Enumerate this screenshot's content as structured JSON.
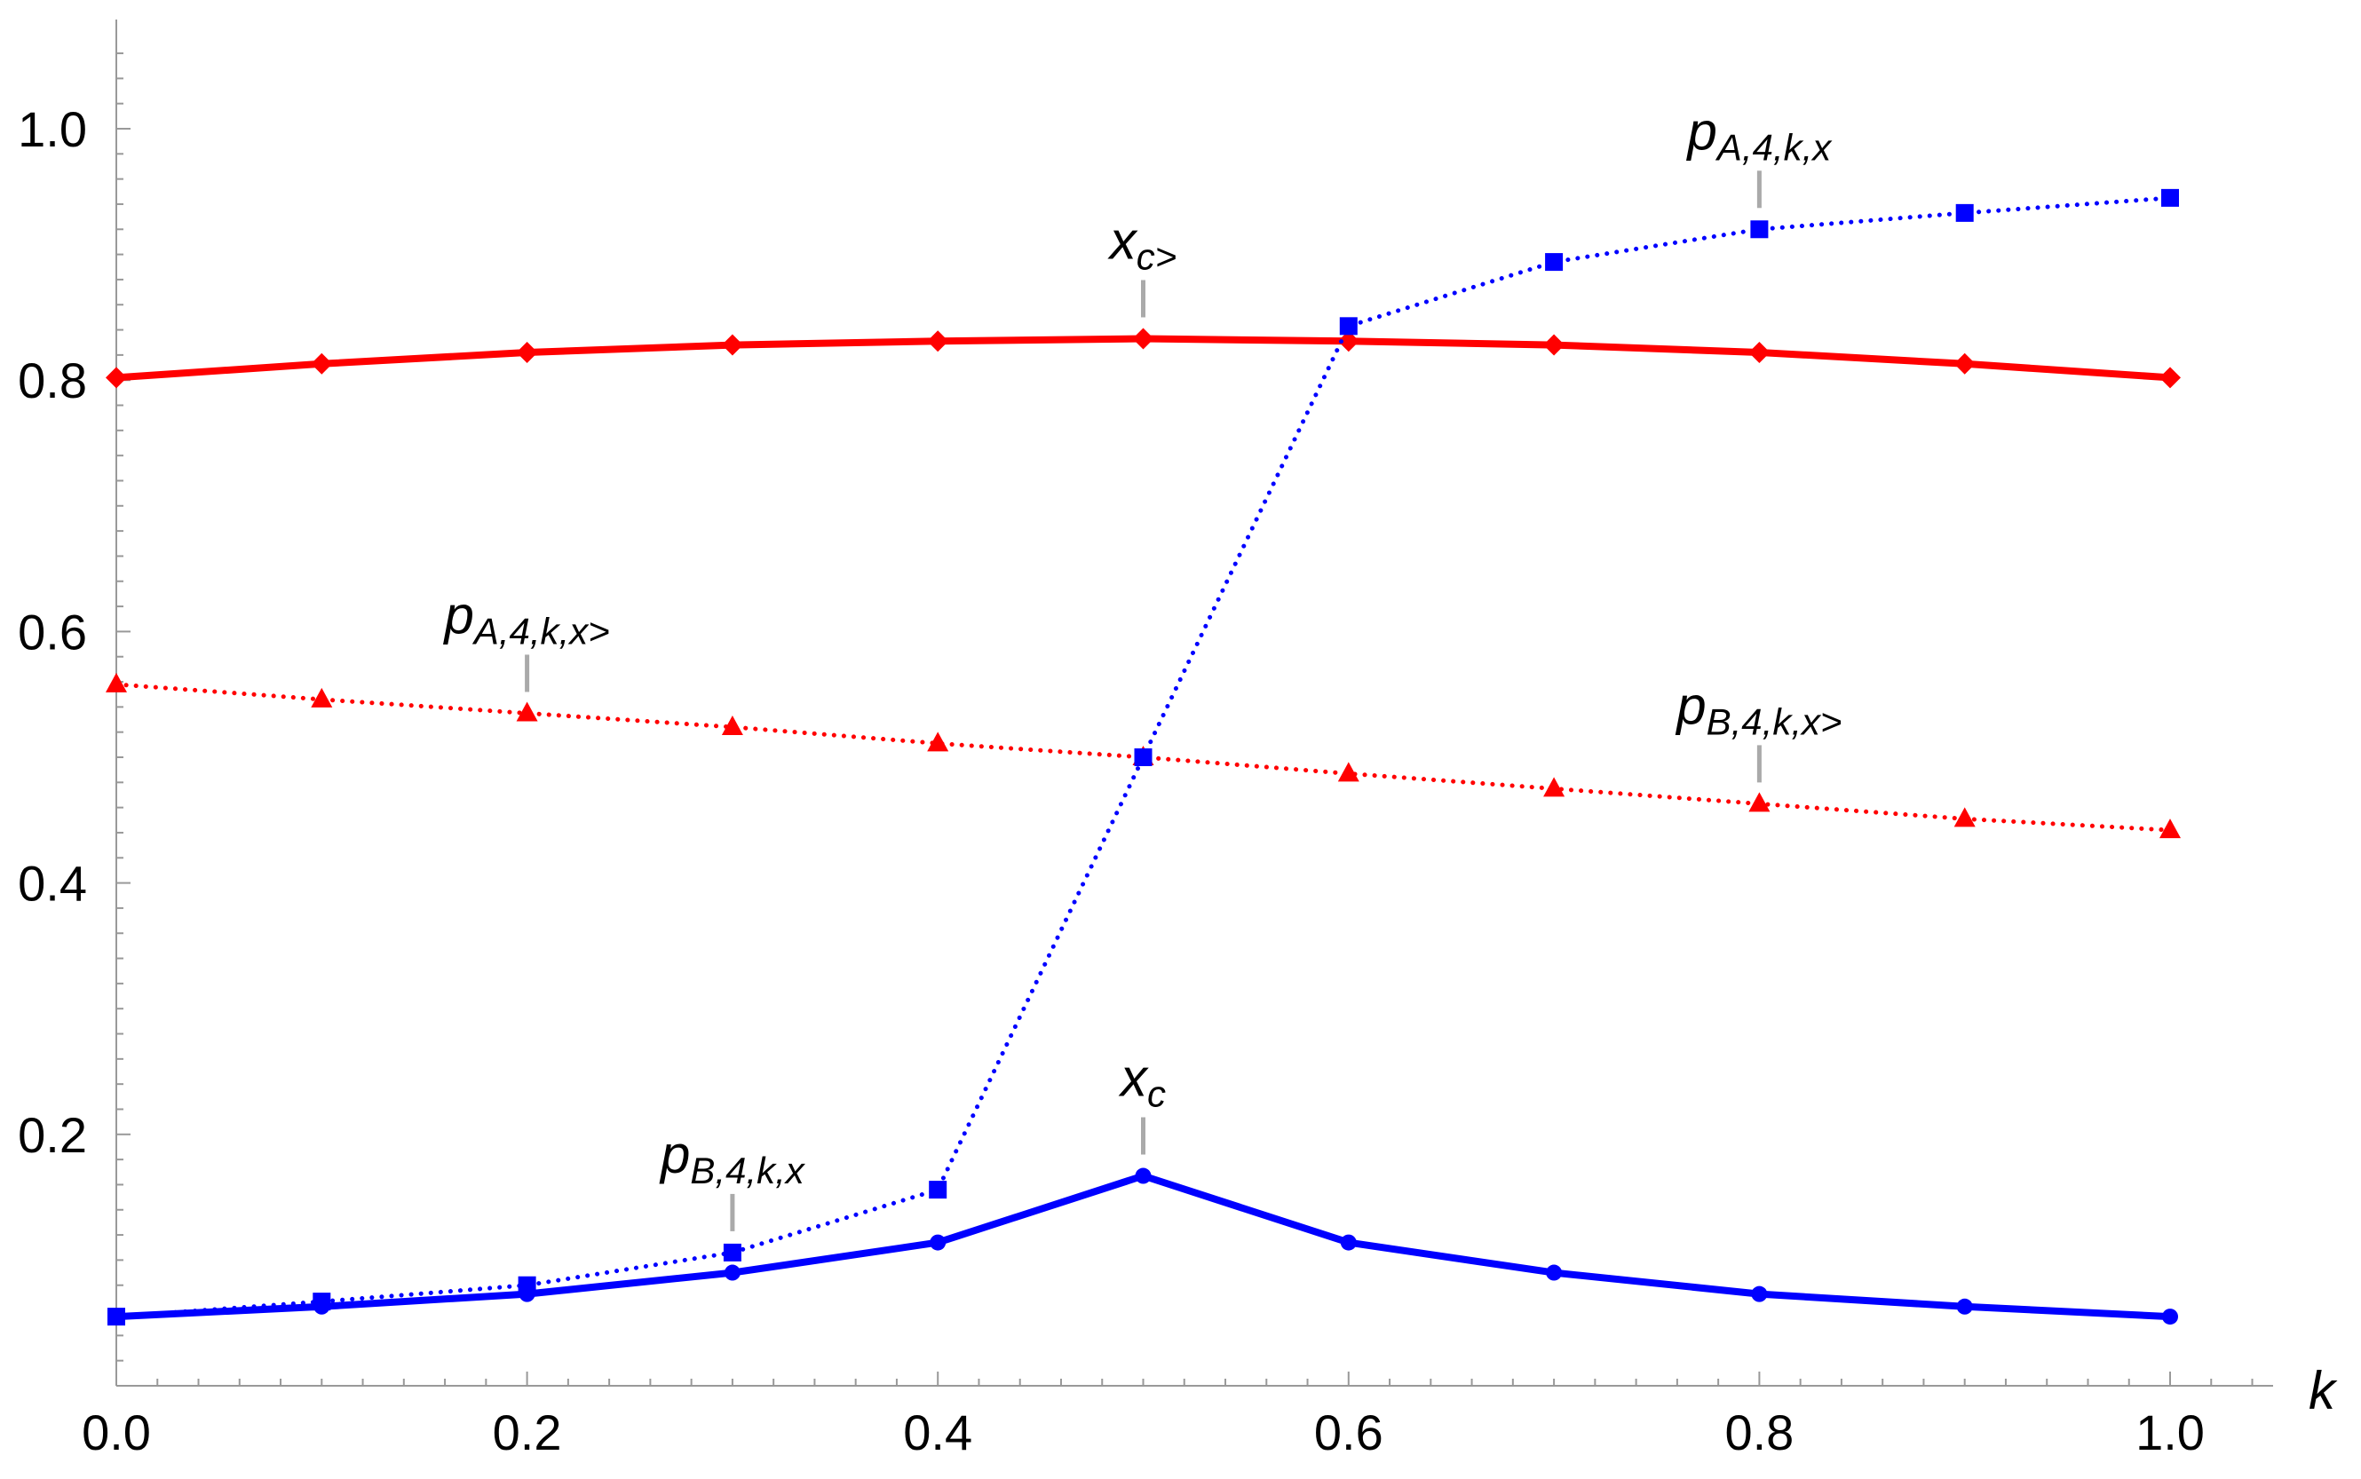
{
  "chart_data": {
    "type": "line",
    "title": "",
    "xlabel": "k",
    "ylabel": "",
    "xlim": [
      0,
      1.05
    ],
    "ylim": [
      0,
      1.08
    ],
    "x_ticks": [
      0.0,
      0.2,
      0.4,
      0.6,
      0.8,
      1.0
    ],
    "x_tick_labels": [
      "0.0",
      "0.2",
      "0.4",
      "0.6",
      "0.8",
      "1.0"
    ],
    "y_ticks": [
      0.2,
      0.4,
      0.6,
      0.8,
      1.0
    ],
    "y_tick_labels": [
      "0.2",
      "0.4",
      "0.6",
      "0.8",
      "1.0"
    ],
    "x": [
      0.0,
      0.1,
      0.2,
      0.3,
      0.4,
      0.5,
      0.6,
      0.7,
      0.8,
      0.9,
      1.0
    ],
    "series": [
      {
        "name": "x_c>",
        "color": "#ff0000",
        "line": "solid",
        "marker": "diamond",
        "values": [
          0.802,
          0.813,
          0.822,
          0.828,
          0.831,
          0.833,
          0.831,
          0.828,
          0.822,
          0.813,
          0.802
        ]
      },
      {
        "name": "p_A,4,k,x>",
        "color": "#ff0000",
        "line": "dotted",
        "marker": "triangle",
        "values": [
          0.558,
          0.546,
          0.535,
          0.524,
          0.511,
          0.5,
          0.487,
          0.475,
          0.463,
          0.451,
          0.442
        ]
      },
      {
        "name": "p_A,4,k,x",
        "color": "#0000ff",
        "line": "dotted",
        "marker": "square",
        "values": [
          0.055,
          0.067,
          0.08,
          0.106,
          0.156,
          0.5,
          0.843,
          0.894,
          0.92,
          0.933,
          0.945
        ]
      },
      {
        "name": "x_c",
        "color": "#0000ff",
        "line": "solid",
        "marker": "circle",
        "values": [
          0.055,
          0.063,
          0.073,
          0.09,
          0.114,
          0.167,
          0.114,
          0.09,
          0.073,
          0.063,
          0.055
        ]
      }
    ],
    "annotations": [
      {
        "main": "x",
        "sub": "c>",
        "x": 0.5,
        "y": 0.833
      },
      {
        "main": "p",
        "sub": "A,4,k,x",
        "x": 0.8,
        "y": 0.92
      },
      {
        "main": "p",
        "sub": "A,4,k,x>",
        "x": 0.2,
        "y": 0.535
      },
      {
        "main": "p",
        "sub": "B,4,k,x>",
        "x": 0.8,
        "y": 0.463
      },
      {
        "main": "x",
        "sub": "c",
        "x": 0.5,
        "y": 0.167
      },
      {
        "main": "p",
        "sub": "B,4,k,x",
        "x": 0.3,
        "y": 0.106
      }
    ]
  }
}
